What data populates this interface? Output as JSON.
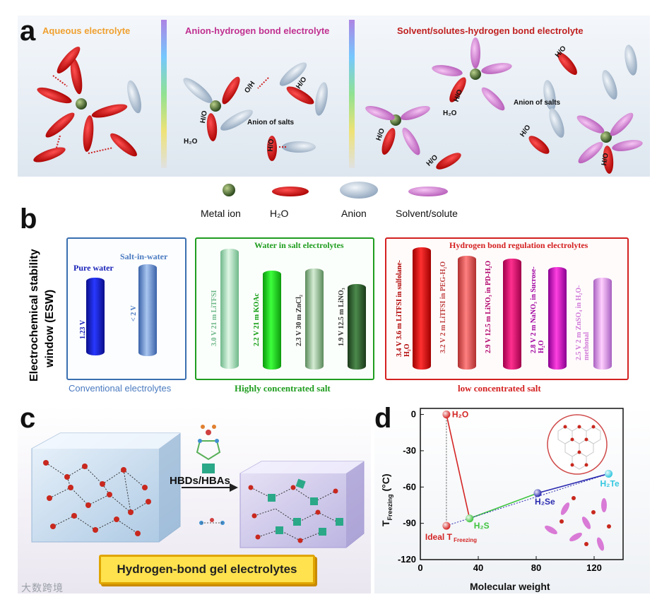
{
  "panel_a": {
    "letter": "a",
    "titles": [
      "Aqueous electrolyte",
      "Anion-hydrogen bond electrolyte",
      "Solvent/solutes-hydrogen bond electrolyte"
    ],
    "title_colors": [
      "#f0a030",
      "#c03090",
      "#c02020"
    ],
    "labels": {
      "h2o_1": "H₂O",
      "anion_salts_1": "Anion of salts",
      "h2o_2": "H₂O",
      "anion_salts_2": "Anion of salts"
    },
    "bond_tags": [
      "H/O",
      "O/H",
      "H/O",
      "H/O",
      "H/O",
      "H/O",
      "H/O",
      "H/O",
      "H/O",
      "H/O"
    ],
    "legend": [
      "Metal ion",
      "H₂O",
      "Anion",
      "Solvent/solute"
    ]
  },
  "panel_b": {
    "letter": "b",
    "y_title": [
      "Electrochemical stability",
      "window (ESW)"
    ],
    "groups": [
      {
        "title": "",
        "foot": "Conventional electrolytes",
        "color": "#3a6fb0",
        "items": [
          {
            "head": "Pure water",
            "label": "1.23 V"
          },
          {
            "head": "Salt-in-water",
            "label": "< 2 V"
          }
        ]
      },
      {
        "title": "Water in salt electrolytes",
        "foot": "Highly concentrated salt",
        "color": "#1f9d1f",
        "items": [
          {
            "label": "3.0 V 21 m LiTFSI"
          },
          {
            "label": "2.2 V 21 m KOAc"
          },
          {
            "label": "2.3 V 30 m ZnCl₂"
          },
          {
            "label": "1.9 V 12.5 m LiNO₃"
          }
        ]
      },
      {
        "title": "Hydrogen bond regulation electrolytes",
        "foot": "low concentrated salt",
        "color": "#d42020",
        "items": [
          {
            "label": "3.4 V  3.6 m LiTFSI in sulfolane-H₂O"
          },
          {
            "label": "3.2 V  2 m LiTFSI in PEG-H₂O"
          },
          {
            "label": "2.9 V 12.5 m LiNO₃ in PD-H₂O"
          },
          {
            "label": "2.8 V 2 m NaNO₃ in Sucrose-H₂O"
          },
          {
            "label": "2.5 V  2 m ZnSO₄ in H₂O-methonal"
          }
        ]
      }
    ]
  },
  "panel_c": {
    "letter": "c",
    "arrow_label": "HBDs/HBAs",
    "banner": "Hydrogen-bond gel electrolytes"
  },
  "chart_data": {
    "type": "scatter",
    "letter": "d",
    "xlabel": "Molecular weight",
    "ylabel_main": "T",
    "ylabel_sub": "Freezing",
    "ylabel_unit": " (°C)",
    "xlim": [
      0,
      140
    ],
    "ylim": [
      -120,
      5
    ],
    "xticks": [
      0,
      40,
      80,
      120
    ],
    "yticks": [
      0,
      -30,
      -60,
      -90,
      -120
    ],
    "points": [
      {
        "name": "H₂O",
        "x": 18,
        "y": 0,
        "color": "#d42525"
      },
      {
        "name": "H₂S",
        "x": 34,
        "y": -86,
        "color": "#3fc43f"
      },
      {
        "name": "H₂Se",
        "x": 81,
        "y": -65,
        "color": "#2b2bb0"
      },
      {
        "name": "H₂Te",
        "x": 130,
        "y": -49,
        "color": "#33c8e0"
      },
      {
        "name": "Ideal T",
        "sub": "Freezing",
        "x": 18,
        "y": -92,
        "color": "#d42525"
      }
    ]
  },
  "watermark": "大数跨境"
}
